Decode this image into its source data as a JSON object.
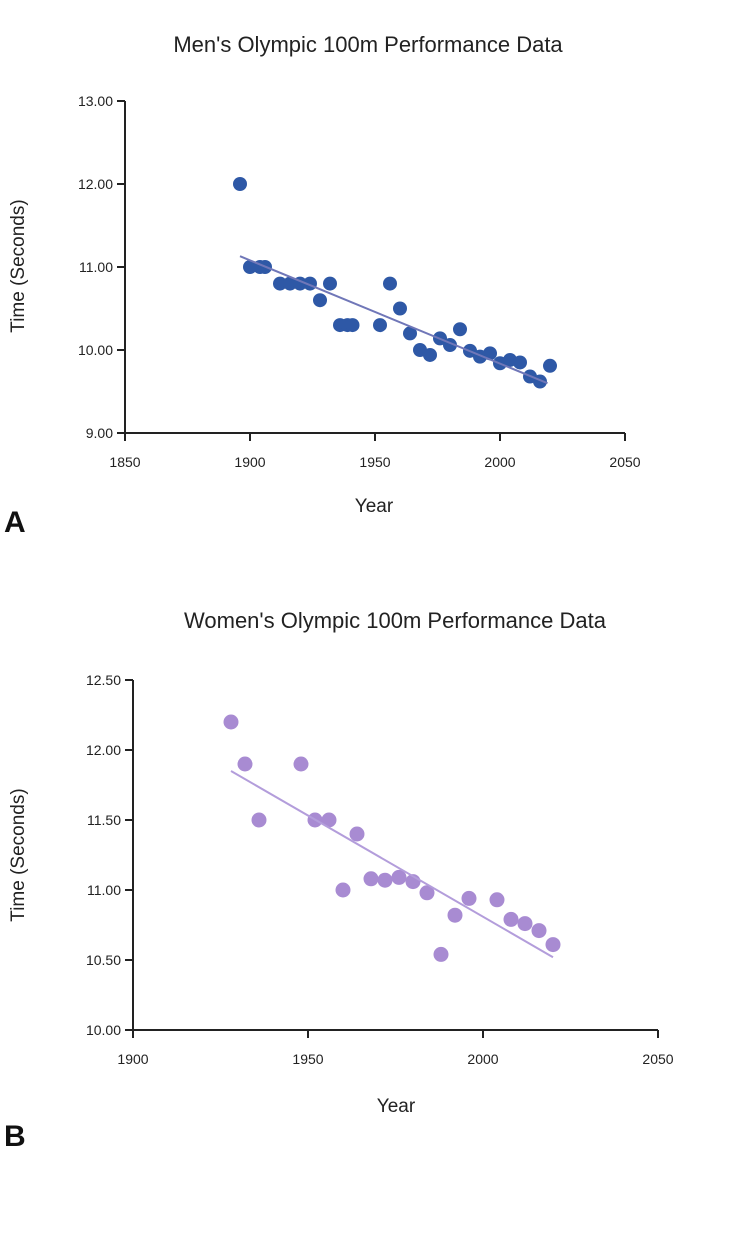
{
  "chart_data": [
    {
      "panel": "A",
      "type": "scatter",
      "title": "Men's Olympic 100m Performance Data",
      "xlabel": "Year",
      "ylabel": "Time (Seconds)",
      "xlim": [
        1850,
        2050
      ],
      "ylim": [
        9.0,
        13.0
      ],
      "xticks": [
        "1850",
        "1900",
        "1950",
        "2000",
        "2050"
      ],
      "yticks": [
        "9.00",
        "10.00",
        "11.00",
        "12.00",
        "13.00"
      ],
      "color": "#2e58a6",
      "trend_color": "#7077b8",
      "grid": false,
      "x": [
        1896,
        1900,
        1904,
        1906,
        1912,
        1916,
        1920,
        1924,
        1928,
        1932,
        1936,
        1939,
        1941,
        1952,
        1956,
        1960,
        1964,
        1968,
        1972,
        1976,
        1980,
        1984,
        1988,
        1992,
        1996,
        2000,
        2004,
        2008,
        2012,
        2016,
        2020
      ],
      "y": [
        12.0,
        11.0,
        11.0,
        11.0,
        10.8,
        10.8,
        10.8,
        10.8,
        10.6,
        10.8,
        10.3,
        10.3,
        10.3,
        10.3,
        10.8,
        10.5,
        10.2,
        10.0,
        9.94,
        10.14,
        10.06,
        10.25,
        9.99,
        9.92,
        9.96,
        9.84,
        9.88,
        9.85,
        9.68,
        9.62,
        9.81
      ],
      "trendline": {
        "x": [
          1896,
          2019
        ],
        "y": [
          11.13,
          9.6
        ]
      }
    },
    {
      "panel": "B",
      "type": "scatter",
      "title": "Women's Olympic 100m Performance Data",
      "xlabel": "Year",
      "ylabel": "Time (Seconds)",
      "xlim": [
        1900,
        2050
      ],
      "ylim": [
        10.0,
        12.5
      ],
      "xticks": [
        "1900",
        "1950",
        "2000",
        "2050"
      ],
      "yticks": [
        "10.00",
        "10.50",
        "11.00",
        "11.50",
        "12.00",
        "12.50"
      ],
      "color": "#a88bd2",
      "trend_color": "#b39ddb",
      "grid": false,
      "x": [
        1928,
        1932,
        1936,
        1948,
        1952,
        1956,
        1960,
        1964,
        1968,
        1972,
        1976,
        1980,
        1984,
        1988,
        1992,
        1996,
        2004,
        2008,
        2012,
        2016,
        2020
      ],
      "y": [
        12.2,
        11.9,
        11.5,
        11.9,
        11.5,
        11.5,
        11.0,
        11.4,
        11.08,
        11.07,
        11.09,
        11.06,
        10.98,
        10.54,
        10.82,
        10.94,
        10.93,
        10.79,
        10.76,
        10.71,
        10.61
      ],
      "trendline": {
        "x": [
          1928,
          2020
        ],
        "y": [
          11.85,
          10.52
        ]
      }
    }
  ]
}
